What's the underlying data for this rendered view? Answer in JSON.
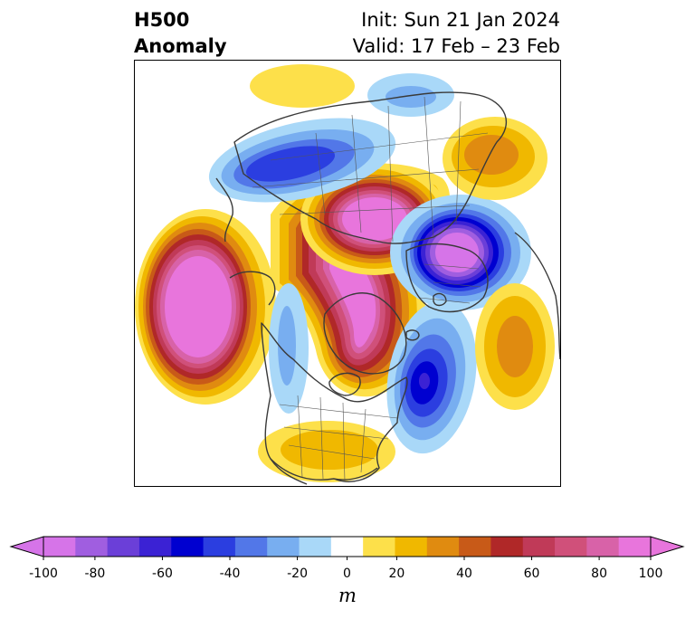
{
  "header": {
    "title_line1": "H500",
    "title_line2": "Anomaly",
    "init_text": "Init: Sun 21 Jan 2024",
    "valid_text": "Valid: 17 Feb – 23 Feb"
  },
  "colorbar": {
    "unit": "m",
    "ticks": [
      "-100",
      "-80",
      "-60",
      "-40",
      "-20",
      "0",
      "20",
      "40",
      "60",
      "80",
      "100"
    ],
    "levels": [
      -100,
      -90,
      -80,
      -70,
      -60,
      -50,
      -40,
      -30,
      -20,
      -10,
      10,
      20,
      30,
      40,
      50,
      60,
      70,
      80,
      90,
      100
    ],
    "colors": [
      "#d674e8",
      "#a05ee0",
      "#6b3fd8",
      "#3b22d4",
      "#0000d0",
      "#2b3ee0",
      "#5277e8",
      "#78aef0",
      "#a9d8f8",
      "#ffffff",
      "#fde04a",
      "#f0b800",
      "#e08b10",
      "#c85a18",
      "#b02828",
      "#c03a58",
      "#d0507a",
      "#d862a8",
      "#e875dc"
    ]
  },
  "anomaly_centers": [
    {
      "label": "ridge-north-pacific",
      "value": 100
    },
    {
      "label": "ridge-arctic",
      "value": 100
    },
    {
      "label": "ridge-eurasia-arctic",
      "value": 90
    },
    {
      "label": "trough-western-europe",
      "value": -100
    },
    {
      "label": "trough-north-atlantic",
      "value": -70
    },
    {
      "label": "trough-siberia",
      "value": -60
    },
    {
      "label": "ridge-mid-atlantic",
      "value": 40
    },
    {
      "label": "ridge-gulf-mexico",
      "value": 30
    },
    {
      "label": "ridge-near-east",
      "value": 40
    },
    {
      "label": "ridge-east-siberia",
      "value": 20
    }
  ]
}
